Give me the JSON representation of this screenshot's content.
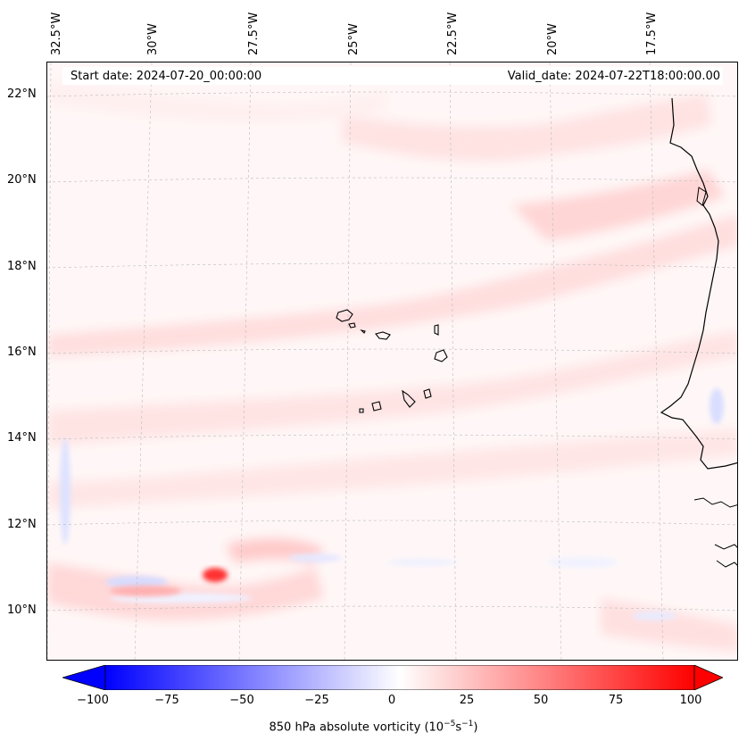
{
  "map": {
    "lon_labels": [
      "32.5°W",
      "30°W",
      "27.5°W",
      "25°W",
      "22.5°W",
      "20°W",
      "17.5°W"
    ],
    "lat_labels": [
      "22°N",
      "20°N",
      "18°N",
      "16°N",
      "14°N",
      "12°N",
      "10°N"
    ],
    "start_date": "Start date: 2024-07-20_00:00:00",
    "valid_date": "Valid_date: 2024-07-22T18:00:00.00"
  },
  "colorbar": {
    "ticks": [
      "−100",
      "−75",
      "−50",
      "−25",
      "0",
      "25",
      "50",
      "75",
      "100"
    ],
    "label_main": "850 hPa absolute vorticity (10",
    "label_exp1": "−5",
    "label_mid": "s",
    "label_exp2": "−1",
    "label_end": ")",
    "min": -100,
    "max": 100,
    "negative_color": "#0000ff",
    "positive_color": "#ff0000",
    "neutral_color": "#ffffff"
  },
  "colors": {
    "coastline": "#000000",
    "gridline": "#bbbbbb",
    "background_tint": "#fff7f7"
  }
}
